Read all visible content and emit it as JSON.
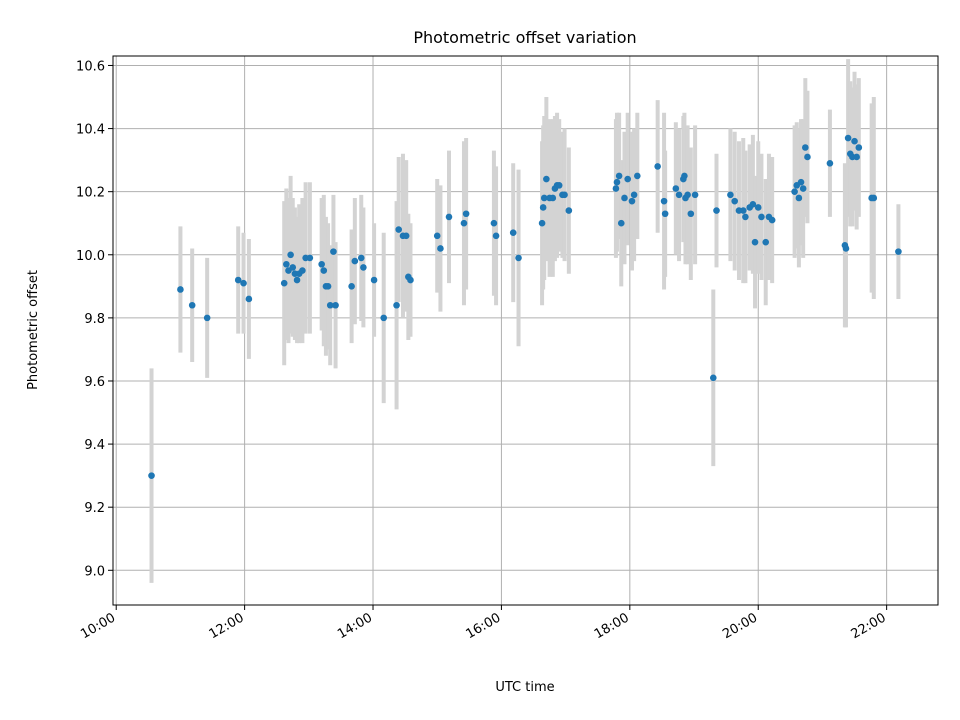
{
  "chart_data": {
    "type": "scatter",
    "title": "Photometric offset variation",
    "xlabel": "UTC time",
    "ylabel": "Photometric offset",
    "xlim": [
      "09:57",
      "22:48"
    ],
    "ylim": [
      8.89,
      10.63
    ],
    "xticks": [
      "10:00",
      "12:00",
      "14:00",
      "16:00",
      "18:00",
      "20:00",
      "22:00"
    ],
    "yticks": [
      9.0,
      9.2,
      9.4,
      9.6,
      9.8,
      10.0,
      10.2,
      10.4,
      10.6
    ],
    "grid": true,
    "colors": {
      "marker": "#1f77b4",
      "errorbar": "#d3d3d3",
      "grid": "#b0b0b0"
    },
    "series": [
      {
        "x": [
          "10:33",
          "11:00",
          "11:11",
          "11:25",
          "11:54",
          "11:59",
          "12:04",
          "12:37",
          "12:39",
          "12:41",
          "12:43",
          "12:45",
          "12:47",
          "12:49",
          "12:51",
          "12:54",
          "12:57",
          "13:01",
          "13:12",
          "13:14",
          "13:16",
          "13:18",
          "13:20",
          "13:23",
          "13:25",
          "13:40",
          "13:43",
          "13:49",
          "13:51",
          "14:01",
          "14:10",
          "14:22",
          "14:24",
          "14:28",
          "14:31",
          "14:33",
          "14:35",
          "15:00",
          "15:03",
          "15:11",
          "15:25",
          "15:27",
          "15:53",
          "15:55",
          "16:11",
          "16:16",
          "16:38",
          "16:39",
          "16:40",
          "16:42",
          "16:45",
          "16:48",
          "16:50",
          "16:52",
          "16:54",
          "16:57",
          "16:59",
          "17:03",
          "17:47",
          "17:48",
          "17:50",
          "17:52",
          "17:55",
          "17:58",
          "18:02",
          "18:04",
          "18:07",
          "18:26",
          "18:32",
          "18:33",
          "18:43",
          "18:46",
          "18:50",
          "18:51",
          "18:52",
          "18:54",
          "18:57",
          "19:01",
          "19:18",
          "19:21",
          "19:34",
          "19:38",
          "19:42",
          "19:46",
          "19:48",
          "19:52",
          "19:55",
          "19:57",
          "20:00",
          "20:03",
          "20:07",
          "20:10",
          "20:13",
          "20:34",
          "20:36",
          "20:38",
          "20:40",
          "20:42",
          "20:44",
          "20:46",
          "21:07",
          "21:21",
          "21:22",
          "21:24",
          "21:26",
          "21:28",
          "21:30",
          "21:32",
          "21:34",
          "21:46",
          "21:48",
          "22:11"
        ],
        "y": [
          9.3,
          9.89,
          9.84,
          9.8,
          9.92,
          9.91,
          9.86,
          9.91,
          9.97,
          9.95,
          10.0,
          9.96,
          9.94,
          9.92,
          9.94,
          9.95,
          9.99,
          9.99,
          9.97,
          9.95,
          9.9,
          9.9,
          9.84,
          10.01,
          9.84,
          9.9,
          9.98,
          9.99,
          9.96,
          9.92,
          9.8,
          9.84,
          10.08,
          10.06,
          10.06,
          9.93,
          9.92,
          10.06,
          10.02,
          10.12,
          10.1,
          10.13,
          10.1,
          10.06,
          10.07,
          9.99,
          10.1,
          10.15,
          10.18,
          10.24,
          10.18,
          10.18,
          10.21,
          10.22,
          10.22,
          10.19,
          10.19,
          10.14,
          10.21,
          10.23,
          10.25,
          10.1,
          10.18,
          10.24,
          10.17,
          10.19,
          10.25,
          10.28,
          10.17,
          10.13,
          10.21,
          10.19,
          10.24,
          10.25,
          10.18,
          10.19,
          10.13,
          10.19,
          9.61,
          10.14,
          10.19,
          10.17,
          10.14,
          10.14,
          10.12,
          10.15,
          10.16,
          10.04,
          10.15,
          10.12,
          10.04,
          10.12,
          10.11,
          10.2,
          10.22,
          10.18,
          10.23,
          10.21,
          10.34,
          10.31,
          10.29,
          10.03,
          10.02,
          10.37,
          10.32,
          10.31,
          10.36,
          10.31,
          10.34,
          10.18,
          10.18,
          10.01
        ],
        "yerr": [
          0.34,
          0.2,
          0.18,
          0.19,
          0.17,
          0.16,
          0.19,
          0.26,
          0.24,
          0.23,
          0.25,
          0.22,
          0.21,
          0.2,
          0.22,
          0.23,
          0.24,
          0.24,
          0.21,
          0.24,
          0.22,
          0.2,
          0.19,
          0.18,
          0.2,
          0.18,
          0.2,
          0.2,
          0.19,
          0.18,
          0.27,
          0.33,
          0.23,
          0.26,
          0.24,
          0.2,
          0.18,
          0.18,
          0.2,
          0.21,
          0.26,
          0.24,
          0.23,
          0.22,
          0.22,
          0.28,
          0.26,
          0.26,
          0.26,
          0.26,
          0.25,
          0.25,
          0.23,
          0.23,
          0.21,
          0.2,
          0.21,
          0.2,
          0.22,
          0.22,
          0.2,
          0.2,
          0.21,
          0.21,
          0.22,
          0.21,
          0.2,
          0.21,
          0.28,
          0.2,
          0.21,
          0.21,
          0.2,
          0.2,
          0.21,
          0.22,
          0.21,
          0.22,
          0.28,
          0.18,
          0.21,
          0.22,
          0.22,
          0.23,
          0.21,
          0.2,
          0.22,
          0.21,
          0.21,
          0.2,
          0.2,
          0.2,
          0.2,
          0.21,
          0.2,
          0.22,
          0.2,
          0.22,
          0.22,
          0.21,
          0.17,
          0.26,
          0.25,
          0.25,
          0.23,
          0.22,
          0.22,
          0.23,
          0.22,
          0.3,
          0.32,
          0.15
        ]
      }
    ]
  }
}
